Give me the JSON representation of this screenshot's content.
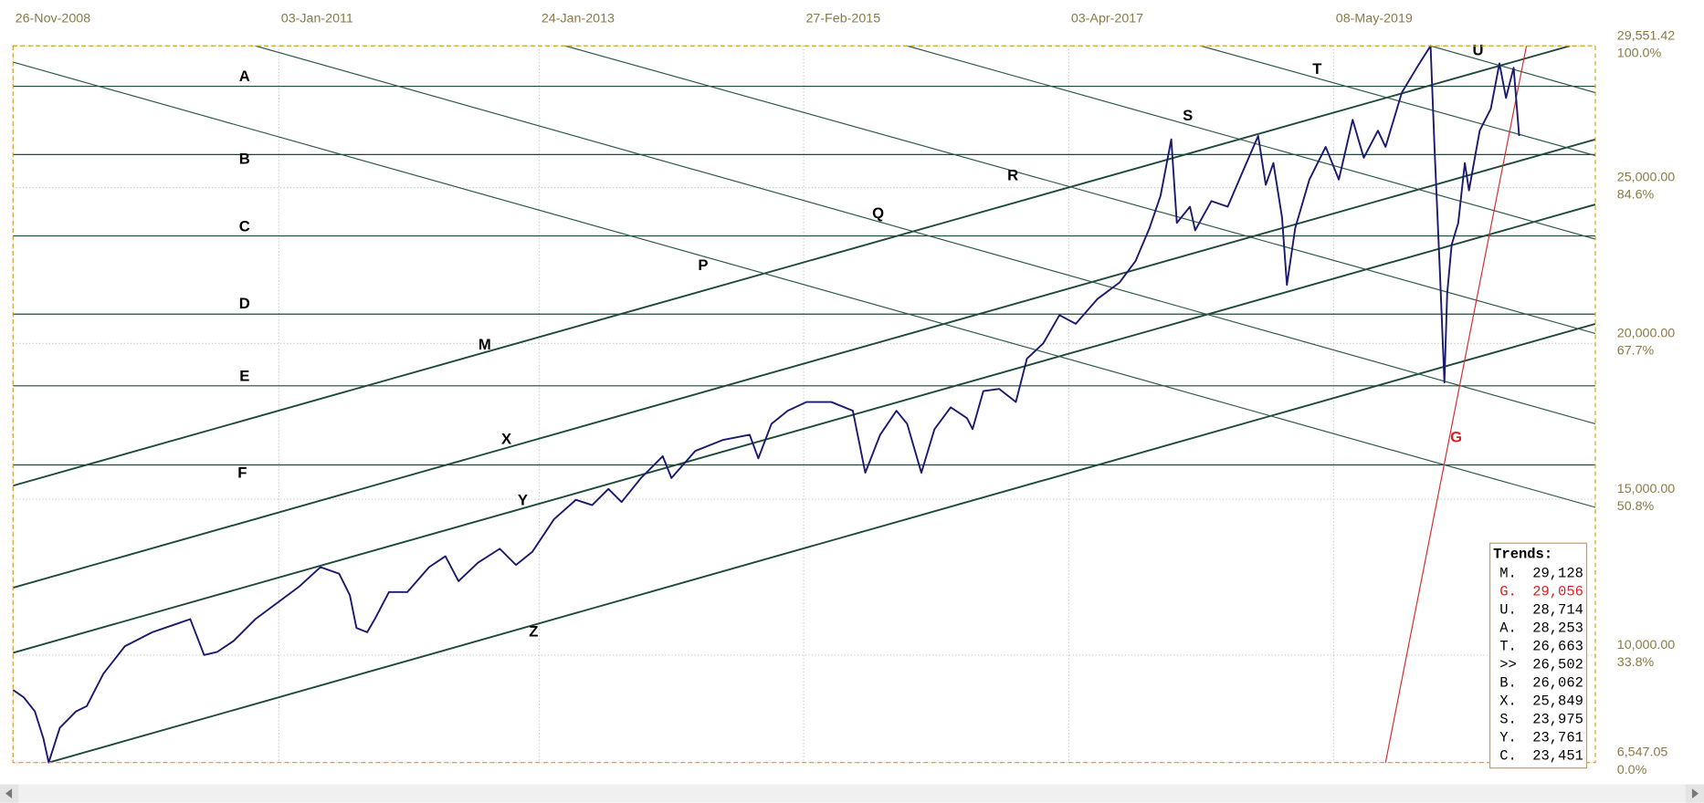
{
  "chart_data": {
    "type": "line",
    "x": [
      "26-Nov-2008",
      "27-Dec-2008",
      "28-Jan-2009",
      "22-Feb-2009",
      "09-Mar-2009",
      "10-Apr-2009",
      "27-May-2009",
      "27-Jun-2009",
      "14-Aug-2009",
      "15-Oct-2009",
      "02-Jan-2010",
      "06-Mar-2010",
      "22-Apr-2010",
      "01-Jun-2010",
      "09-Jul-2010",
      "25-Aug-2010",
      "27-Oct-2010",
      "29-Dec-2010",
      "02-Mar-2011",
      "03-May-2011",
      "26-Jun-2011",
      "27-Jul-2011",
      "15-Aug-2011",
      "15-Sep-2011",
      "07-Oct-2011",
      "17-Nov-2011",
      "09-Jan-2012",
      "12-Mar-2012",
      "28-Apr-2012",
      "05-Jun-2012",
      "31-Jul-2012",
      "02-Oct-2012",
      "18-Nov-2012",
      "04-Jan-2013",
      "08-Mar-2013",
      "10-May-2013",
      "26-Jun-2013",
      "12-Aug-2013",
      "19-Sep-2013",
      "14-Nov-2013",
      "16-Jan-2014",
      "10-Feb-2014",
      "20-Apr-2014",
      "08-Jul-2014",
      "24-Sep-2014",
      "19-Oct-2014",
      "26-Nov-2014",
      "12-Jan-2015",
      "07-Mar-2015",
      "18-May-2015",
      "19-Jul-2015",
      "24-Aug-2015",
      "06-Oct-2015",
      "22-Nov-2015",
      "23-Dec-2015",
      "02-Feb-2016",
      "11-Mar-2016",
      "27-Apr-2016",
      "13-Jun-2016",
      "29-Jun-2016",
      "30-Jul-2016",
      "14-Sep-2016",
      "01-Nov-2016",
      "03-Dec-2016",
      "19-Jan-2017",
      "07-Mar-2017",
      "23-Apr-2017",
      "25-Jun-2017",
      "27-Aug-2017",
      "13-Oct-2017",
      "22-Nov-2017",
      "24-Dec-2017",
      "24-Jan-2018",
      "09-Feb-2018",
      "19-Mar-2018",
      "03-Apr-2018",
      "20-May-2018",
      "06-Jul-2018",
      "22-Aug-2018",
      "02-Oct-2018",
      "24-Oct-2018",
      "15-Nov-2018",
      "10-Dec-2018",
      "24-Dec-2018",
      "17-Jan-2019",
      "27-Feb-2019",
      "15-Apr-2019",
      "23-May-2019",
      "02-Jul-2019",
      "03-Aug-2019",
      "13-Sep-2019",
      "05-Oct-2019",
      "21-Nov-2019",
      "07-Jan-2020",
      "12-Feb-2020",
      "24-Feb-2020",
      "10-Mar-2020",
      "23-Mar-2020",
      "31-Mar-2020",
      "13-Apr-2020",
      "02-May-2020",
      "21-May-2020",
      "02-Jun-2020",
      "03-Jul-2020",
      "04-Aug-2020",
      "29-Aug-2020",
      "17-Sep-2020",
      "09-Oct-2020",
      "25-Oct-2020"
    ],
    "series": [
      {
        "color": "#1a1a6e",
        "values": [
          8880,
          8640,
          8190,
          7310,
          6547.05,
          7660,
          8190,
          8360,
          9400,
          10280,
          10730,
          10970,
          11150,
          10000,
          10100,
          10450,
          11150,
          11670,
          12190,
          12820,
          12610,
          11920,
          10870,
          10730,
          11150,
          12020,
          12020,
          12820,
          13170,
          12370,
          12960,
          13410,
          12890,
          13310,
          14360,
          14980,
          14810,
          15330,
          14910,
          15680,
          16380,
          15680,
          16550,
          16900,
          17070,
          16310,
          17420,
          17840,
          18120,
          18120,
          17840,
          15850,
          17070,
          17840,
          17420,
          15850,
          17250,
          17950,
          17600,
          17250,
          18470,
          18540,
          18120,
          19510,
          20000,
          20910,
          20630,
          21430,
          21950,
          22650,
          23700,
          24740,
          26550,
          23870,
          24390,
          23630,
          24570,
          24390,
          25610,
          26660,
          25090,
          25790,
          24040,
          21880,
          23700,
          25260,
          26310,
          25260,
          27180,
          25960,
          26830,
          26310,
          28050,
          28920,
          29551.42,
          26140,
          22300,
          18750,
          21600,
          23170,
          23870,
          25790,
          24910,
          26830,
          27530,
          28990,
          27880,
          28850,
          26660
        ]
      }
    ],
    "xlim": [
      "26-Nov-2008",
      "02-Jun-2021"
    ],
    "xticks": [
      "26-Nov-2008",
      "03-Jan-2011",
      "24-Jan-2013",
      "27-Feb-2015",
      "03-Apr-2017",
      "08-May-2019"
    ],
    "ylim": [
      6547.05,
      29551.42
    ],
    "yticks": [
      {
        "value": 6547.05,
        "label": "6,547.05"
      },
      {
        "value": 10000,
        "label": "10,000.00"
      },
      {
        "value": 15000,
        "label": "15,000.00"
      },
      {
        "value": 20000,
        "label": "20,000.00"
      },
      {
        "value": 25000,
        "label": "25,000.00"
      },
      {
        "value": 29551.42,
        "label": "29,551.42"
      }
    ],
    "ytick_percent_labels": [
      "0.0%",
      "33.8%",
      "50.8%",
      "67.7%",
      "84.6%",
      "100.0%"
    ],
    "grid": true,
    "trend_lines": [
      {
        "name": "A",
        "color": "#1f4a3a",
        "x": [
          "26-Nov-2008",
          "02-Jun-2021"
        ],
        "values": [
          28253,
          28253
        ]
      },
      {
        "name": "B",
        "color": "#1f4a3a",
        "x": [
          "26-Nov-2008",
          "02-Jun-2021"
        ],
        "values": [
          26062,
          26062
        ]
      },
      {
        "name": "C",
        "color": "#1f4a3a",
        "x": [
          "26-Nov-2008",
          "02-Jun-2021"
        ],
        "values": [
          23451,
          23451
        ]
      },
      {
        "name": "D",
        "color": "#1f4a3a",
        "x": [
          "26-Nov-2008",
          "02-Jun-2021"
        ],
        "values": [
          20940,
          20940
        ]
      },
      {
        "name": "E",
        "color": "#1f4a3a",
        "x": [
          "26-Nov-2008",
          "02-Jun-2021"
        ],
        "values": [
          18640,
          18640
        ]
      },
      {
        "name": "F",
        "color": "#1f4a3a",
        "x": [
          "26-Nov-2008",
          "02-Jun-2021"
        ],
        "values": [
          16100,
          16100
        ]
      },
      {
        "name": "M",
        "color": "#1f4a3a",
        "x": [
          "26-Nov-2008",
          "21-Mar-2021"
        ],
        "values": [
          15435,
          29551.42
        ]
      },
      {
        "name": "X",
        "color": "#1f4a3a",
        "x": [
          "26-Nov-2008",
          "02-Jun-2021"
        ],
        "values": [
          12160,
          26550
        ]
      },
      {
        "name": "Y",
        "color": "#1f4a3a",
        "x": [
          "26-Nov-2008",
          "02-Jun-2021"
        ],
        "values": [
          10070,
          24460
        ]
      },
      {
        "name": "Z",
        "color": "#1f4a3a",
        "x": [
          "09-Mar-2009",
          "02-Jun-2021"
        ],
        "values": [
          6547.05,
          20630
        ]
      },
      {
        "name": "P",
        "color": "#2f5a4a",
        "x": [
          "26-Nov-2008",
          "02-Jun-2021"
        ],
        "values": [
          29030,
          14740
        ]
      },
      {
        "name": "Q",
        "color": "#2f5a4a",
        "x": [
          "27-Oct-2010",
          "02-Jun-2021"
        ],
        "values": [
          29551.42,
          17420
        ]
      },
      {
        "name": "R",
        "color": "#2f5a4a",
        "x": [
          "09-Apr-2013",
          "02-Jun-2021"
        ],
        "values": [
          29551.42,
          20320
        ]
      },
      {
        "name": "S",
        "color": "#2f5a4a",
        "x": [
          "23-Dec-2015",
          "02-Jun-2021"
        ],
        "values": [
          29551.42,
          23350
        ]
      },
      {
        "name": "T",
        "color": "#2f5a4a",
        "x": [
          "19-Apr-2018",
          "02-Jun-2021"
        ],
        "values": [
          29551.42,
          26030
        ]
      },
      {
        "name": "U",
        "color": "#2f5a4a",
        "x": [
          "12-Feb-2020",
          "02-Jun-2021"
        ],
        "values": [
          29551.42,
          28050
        ]
      },
      {
        "name": "G",
        "color": "#d03030",
        "x": [
          "05-Oct-2019",
          "15-Nov-2020"
        ],
        "values": [
          6547.05,
          29551.42
        ]
      }
    ],
    "trends_box": {
      "title": "Trends:",
      "rows": [
        {
          "name": "M.",
          "value": "29,128",
          "color": "#000000"
        },
        {
          "name": "G.",
          "value": "29,056",
          "color": "#e02020"
        },
        {
          "name": "U.",
          "value": "28,714",
          "color": "#000000"
        },
        {
          "name": "A.",
          "value": "28,253",
          "color": "#000000"
        },
        {
          "name": "T.",
          "value": "26,663",
          "color": "#000000"
        },
        {
          "name": ">>",
          "value": "26,502",
          "color": "#000000"
        },
        {
          "name": "B.",
          "value": "26,062",
          "color": "#000000"
        },
        {
          "name": "X.",
          "value": "25,849",
          "color": "#000000"
        },
        {
          "name": "S.",
          "value": "23,975",
          "color": "#000000"
        },
        {
          "name": "Y.",
          "value": "23,761",
          "color": "#000000"
        },
        {
          "name": "C.",
          "value": "23,451",
          "color": "#000000"
        }
      ]
    }
  }
}
